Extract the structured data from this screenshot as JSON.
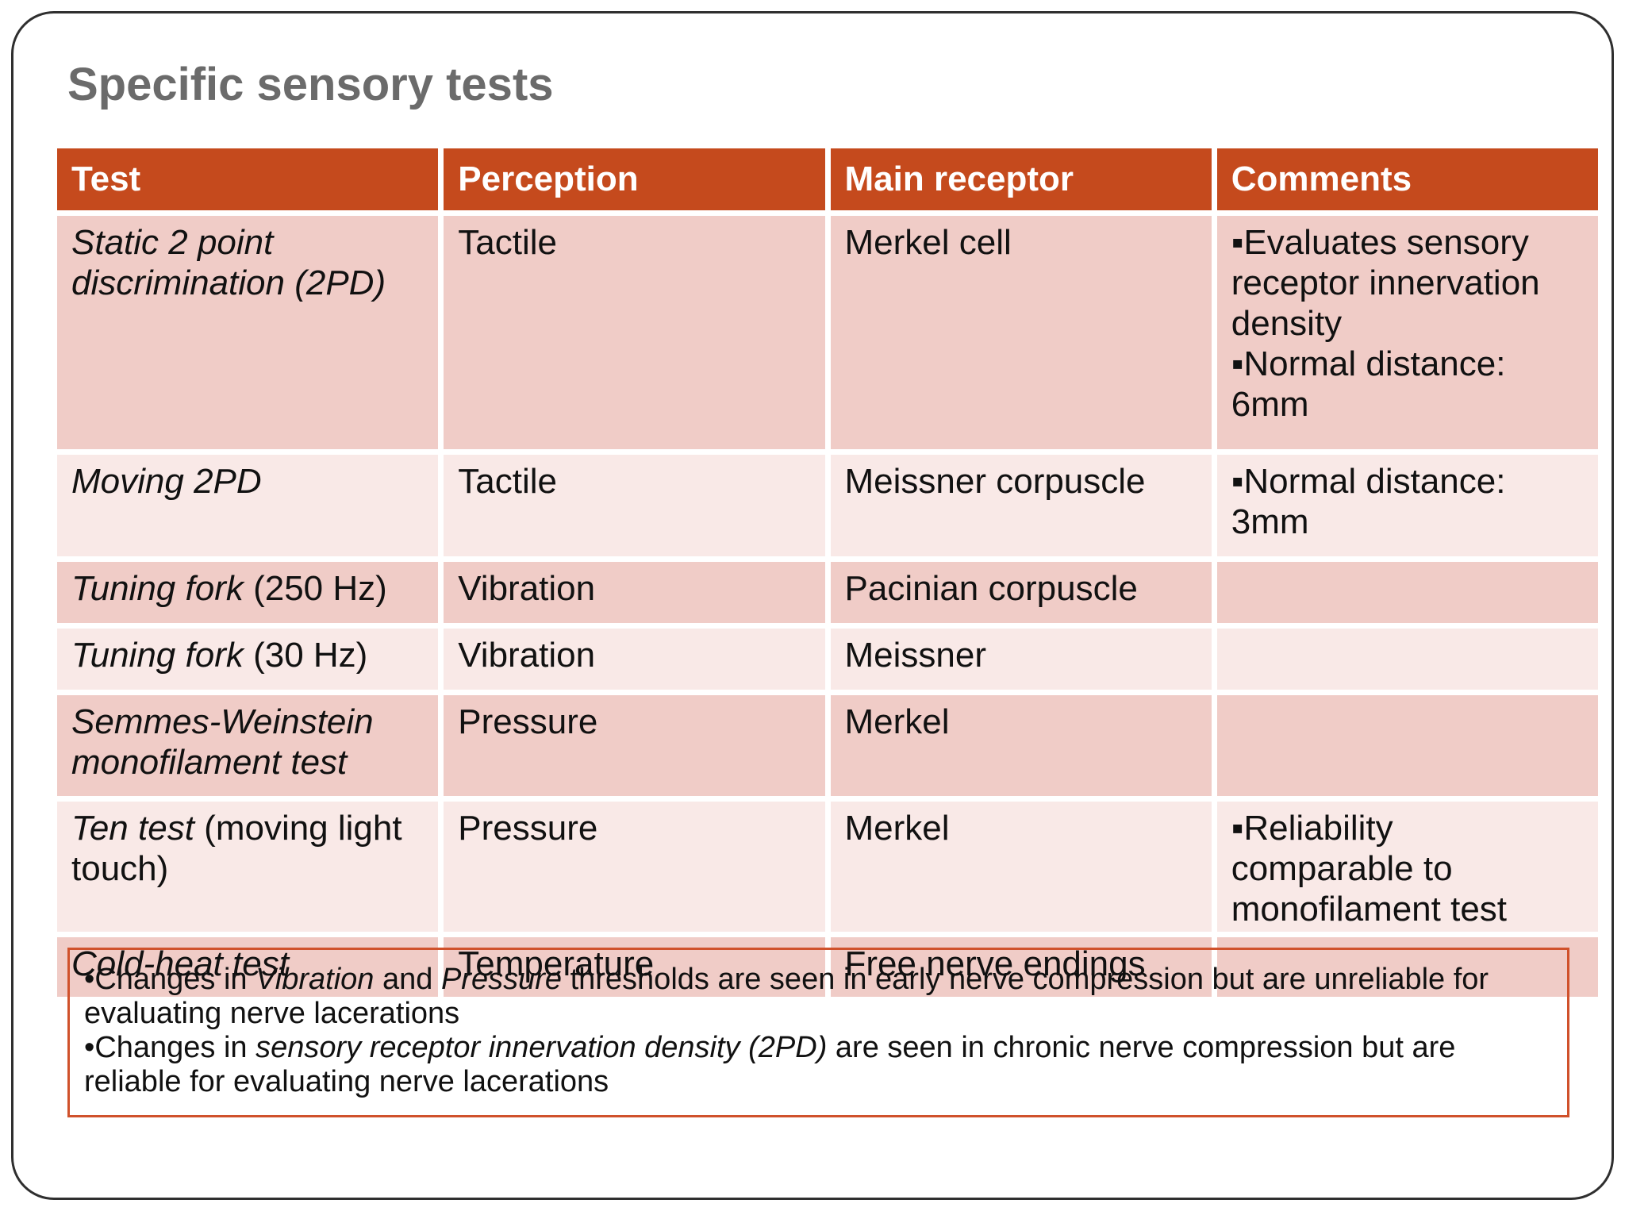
{
  "slide": {
    "title": "Specific sensory tests"
  },
  "colors": {
    "header_bg": "#c54a1d",
    "header_text": "#ffffff",
    "band_dark": "#f0ccc7",
    "band_light": "#f9e9e7",
    "title_text": "#6b6b6b",
    "body_text": "#111111",
    "note_border": "#d0512b",
    "slide_border": "#2f2f2f"
  },
  "table": {
    "headers": [
      "Test",
      "Perception",
      "Main receptor",
      "Comments"
    ],
    "comment_bullet": "▪",
    "rows": [
      {
        "test": [
          {
            "text": "Static 2 point discrimination (2PD)",
            "italic": true
          }
        ],
        "perception": "Tactile",
        "receptor": "Merkel cell",
        "comments": [
          "Evaluates sensory receptor innervation density",
          "Normal distance: 6mm"
        ]
      },
      {
        "test": [
          {
            "text": "Moving 2PD",
            "italic": true
          }
        ],
        "perception": "Tactile",
        "receptor": "Meissner corpuscle",
        "comments": [
          "Normal distance: 3mm"
        ]
      },
      {
        "test": [
          {
            "text": "Tuning fork",
            "italic": true
          },
          {
            "text": " (250 Hz)",
            "italic": false
          }
        ],
        "perception": "Vibration",
        "receptor": "Pacinian corpuscle",
        "comments": []
      },
      {
        "test": [
          {
            "text": "Tuning fork",
            "italic": true
          },
          {
            "text": " (30 Hz)",
            "italic": false
          }
        ],
        "perception": "Vibration",
        "receptor": "Meissner",
        "comments": []
      },
      {
        "test": [
          {
            "text": "Semmes-Weinstein monofilament test",
            "italic": true
          }
        ],
        "perception": "Pressure",
        "receptor": "Merkel",
        "comments": []
      },
      {
        "test": [
          {
            "text": "Ten test",
            "italic": true
          },
          {
            "text": " (moving light touch)",
            "italic": false
          }
        ],
        "perception": "Pressure",
        "receptor": "Merkel",
        "comments": [
          "Reliability comparable to monofilament test"
        ]
      },
      {
        "test": [
          {
            "text": "Cold-heat test",
            "italic": true
          }
        ],
        "perception": "Temperature",
        "receptor": "Free nerve endings",
        "comments": []
      }
    ]
  },
  "note_box": {
    "bullet": "•",
    "items": [
      [
        {
          "text": "Changes in ",
          "italic": false
        },
        {
          "text": "Vibration",
          "italic": true
        },
        {
          "text": " and ",
          "italic": false
        },
        {
          "text": "Pressure",
          "italic": true
        },
        {
          "text": " thresholds are seen in early nerve compression but are unreliable for evaluating nerve lacerations",
          "italic": false
        }
      ],
      [
        {
          "text": "Changes in ",
          "italic": false
        },
        {
          "text": "sensory receptor innervation density (2PD)",
          "italic": true
        },
        {
          "text": " are seen in chronic nerve compression but are reliable for evaluating nerve lacerations",
          "italic": false
        }
      ]
    ]
  }
}
